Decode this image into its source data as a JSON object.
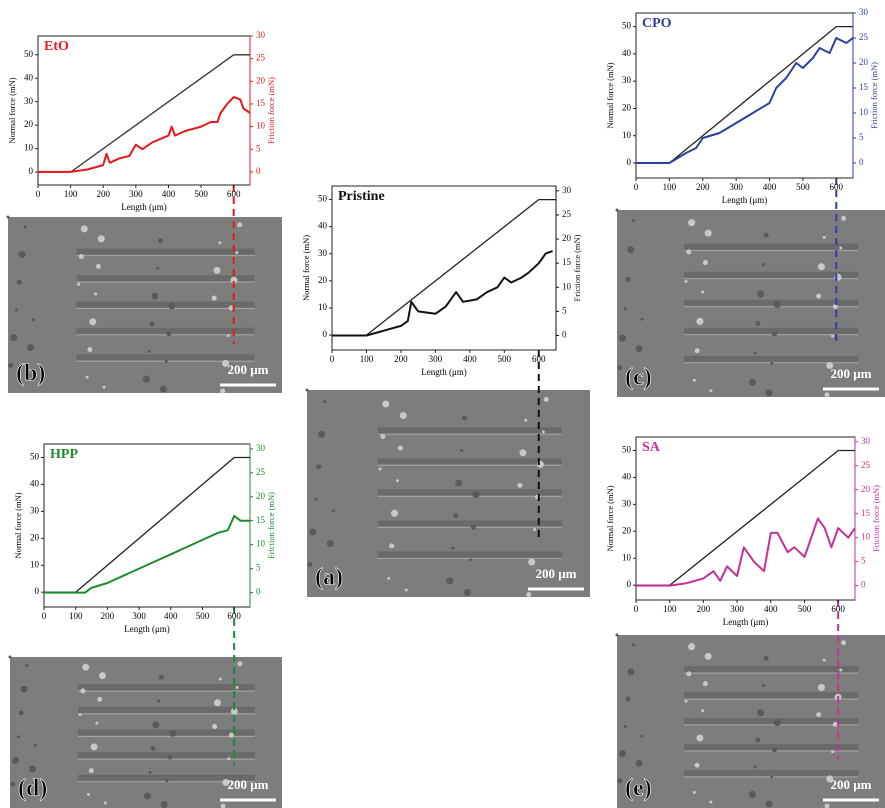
{
  "chart_data": [
    {
      "type": "line",
      "title": "EtO",
      "xlabel": "Length (μm)",
      "ylabel": "Normal force (mN)",
      "y2label": "Friction force (mN)",
      "xlim": [
        0,
        650
      ],
      "xticks": [
        0,
        100,
        200,
        300,
        400,
        500,
        600
      ],
      "ylim": [
        -5.5,
        58
      ],
      "yticks": [
        0,
        10,
        20,
        30,
        40,
        50
      ],
      "y2lim": [
        -2.9,
        30
      ],
      "y2ticks": [
        0,
        5,
        10,
        15,
        20,
        25,
        30
      ],
      "series": [
        {
          "color": "#333333",
          "x": [
            0,
            100,
            600,
            650
          ],
          "values": [
            0,
            0,
            50,
            50
          ]
        },
        {
          "color": "#e8191c",
          "axis": "y2",
          "x": [
            0,
            100,
            150,
            200,
            210,
            220,
            250,
            280,
            300,
            320,
            350,
            400,
            410,
            420,
            450,
            500,
            530,
            550,
            560,
            580,
            600,
            620,
            630,
            650
          ],
          "values": [
            0,
            0,
            0.5,
            1.5,
            4,
            2,
            3,
            3.5,
            6,
            5,
            6.5,
            8,
            10,
            8,
            9,
            10,
            11,
            11,
            13,
            15,
            16.5,
            16,
            14,
            13
          ]
        }
      ],
      "panel_label": "(b)",
      "scale_bar": "200 μm"
    },
    {
      "type": "line",
      "title": "Pristine",
      "xlabel": "Length (μm)",
      "ylabel": "Normal force (mN)",
      "y2label": "Friction force (mN)",
      "xlim": [
        0,
        650
      ],
      "xticks": [
        0,
        100,
        200,
        300,
        400,
        500,
        600
      ],
      "ylim": [
        -5.5,
        55
      ],
      "yticks": [
        0,
        10,
        20,
        30,
        40,
        50
      ],
      "y2lim": [
        -3,
        31
      ],
      "y2ticks": [
        0,
        5,
        10,
        15,
        20,
        25,
        30
      ],
      "series": [
        {
          "color": "#222222",
          "x": [
            0,
            100,
            600,
            650
          ],
          "values": [
            0,
            0,
            50,
            50
          ]
        },
        {
          "color": "#111111",
          "axis": "y2",
          "x": [
            0,
            100,
            150,
            200,
            220,
            230,
            250,
            300,
            330,
            360,
            380,
            420,
            450,
            480,
            500,
            520,
            550,
            570,
            600,
            620,
            640
          ],
          "values": [
            0,
            0,
            1,
            2,
            3,
            7,
            5,
            4.5,
            6,
            9,
            7,
            7.5,
            9,
            10,
            12,
            11,
            12,
            13,
            15,
            17,
            17.5
          ]
        }
      ],
      "panel_label": "(a)",
      "scale_bar": "200 μm"
    },
    {
      "type": "line",
      "title": "CPO",
      "xlabel": "Length (μm)",
      "ylabel": "Normal force (mN)",
      "y2label": "Friction force (mN)",
      "xlim": [
        0,
        650
      ],
      "xticks": [
        0,
        100,
        200,
        300,
        400,
        500,
        600
      ],
      "ylim": [
        -5.5,
        55
      ],
      "yticks": [
        0,
        10,
        20,
        30,
        40,
        50
      ],
      "y2lim": [
        -3,
        30
      ],
      "y2ticks": [
        0,
        5,
        10,
        15,
        20,
        25,
        30
      ],
      "series": [
        {
          "color": "#222222",
          "x": [
            0,
            100,
            600,
            650
          ],
          "values": [
            0,
            0,
            50,
            50
          ]
        },
        {
          "color": "#2e3f9e",
          "axis": "y2",
          "x": [
            0,
            100,
            150,
            180,
            200,
            250,
            300,
            350,
            400,
            420,
            450,
            480,
            500,
            530,
            550,
            580,
            600,
            630,
            650
          ],
          "values": [
            0,
            0,
            2,
            3,
            5,
            6,
            8,
            10,
            12,
            15,
            17,
            20,
            19,
            21,
            23,
            22,
            25,
            24,
            25
          ]
        }
      ],
      "panel_label": "(c)",
      "scale_bar": "200 μm"
    },
    {
      "type": "line",
      "title": "HPP",
      "xlabel": "Length (μm)",
      "ylabel": "Normal force (mN)",
      "y2label": "Friction force (mN)",
      "xlim": [
        0,
        650
      ],
      "xticks": [
        0,
        100,
        200,
        300,
        400,
        500,
        600
      ],
      "ylim": [
        -5.5,
        55
      ],
      "yticks": [
        0,
        10,
        20,
        30,
        40,
        50
      ],
      "y2lim": [
        -3,
        31
      ],
      "y2ticks": [
        0,
        5,
        10,
        15,
        20,
        25,
        30
      ],
      "series": [
        {
          "color": "#222222",
          "x": [
            0,
            100,
            600,
            650
          ],
          "values": [
            0,
            0,
            50,
            50
          ]
        },
        {
          "color": "#1e8a2e",
          "axis": "y2",
          "x": [
            0,
            130,
            150,
            200,
            250,
            300,
            350,
            400,
            450,
            500,
            550,
            580,
            600,
            620,
            650
          ],
          "values": [
            0,
            0,
            1,
            2,
            3.5,
            5,
            6.5,
            8,
            9.5,
            11,
            12.5,
            13,
            16,
            15,
            15
          ]
        }
      ],
      "panel_label": "(d)",
      "scale_bar": "200 μm"
    },
    {
      "type": "line",
      "title": "SA",
      "xlabel": "Length (μm)",
      "ylabel": "Normal force (mN)",
      "y2label": "Friction force (mN)",
      "xlim": [
        0,
        650
      ],
      "xticks": [
        0,
        100,
        200,
        300,
        400,
        500,
        600
      ],
      "ylim": [
        -5.5,
        55
      ],
      "yticks": [
        0,
        10,
        20,
        30,
        40,
        50
      ],
      "y2lim": [
        -3,
        31
      ],
      "y2ticks": [
        0,
        5,
        10,
        15,
        20,
        25,
        30
      ],
      "series": [
        {
          "color": "#222222",
          "x": [
            0,
            100,
            600,
            650
          ],
          "values": [
            0,
            0,
            50,
            50
          ]
        },
        {
          "color": "#c4309a",
          "axis": "y2",
          "x": [
            0,
            100,
            150,
            200,
            230,
            250,
            270,
            300,
            320,
            350,
            380,
            400,
            420,
            450,
            470,
            500,
            540,
            560,
            580,
            600,
            630,
            650
          ],
          "values": [
            0,
            0,
            0.5,
            1.5,
            3,
            1,
            4,
            2,
            8,
            5,
            3,
            11,
            11,
            7,
            8,
            6,
            14,
            12,
            8,
            12,
            10,
            12
          ]
        }
      ],
      "panel_label": "(e)",
      "scale_bar": "200 μm"
    }
  ]
}
